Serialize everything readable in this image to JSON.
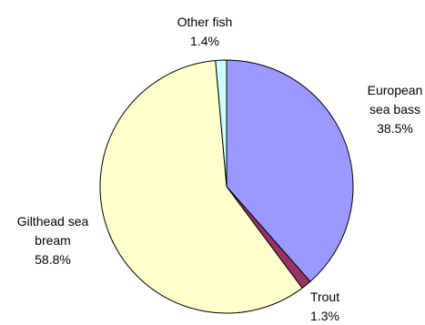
{
  "chart_data": {
    "type": "pie",
    "start_angle_deg": 0,
    "direction": "clockwise",
    "slices": [
      {
        "label_lines": [
          "European",
          "sea bass"
        ],
        "value": 38.5,
        "value_label": "38.5%",
        "color": "#9999FF"
      },
      {
        "label_lines": [
          "Trout"
        ],
        "value": 1.3,
        "value_label": "1.3%",
        "color": "#993366"
      },
      {
        "label_lines": [
          "Gilthead sea",
          "bream"
        ],
        "value": 58.8,
        "value_label": "58.8%",
        "color": "#FFFFCC"
      },
      {
        "label_lines": [
          "Other fish"
        ],
        "value": 1.4,
        "value_label": "1.4%",
        "color": "#CCFFFF"
      }
    ]
  }
}
